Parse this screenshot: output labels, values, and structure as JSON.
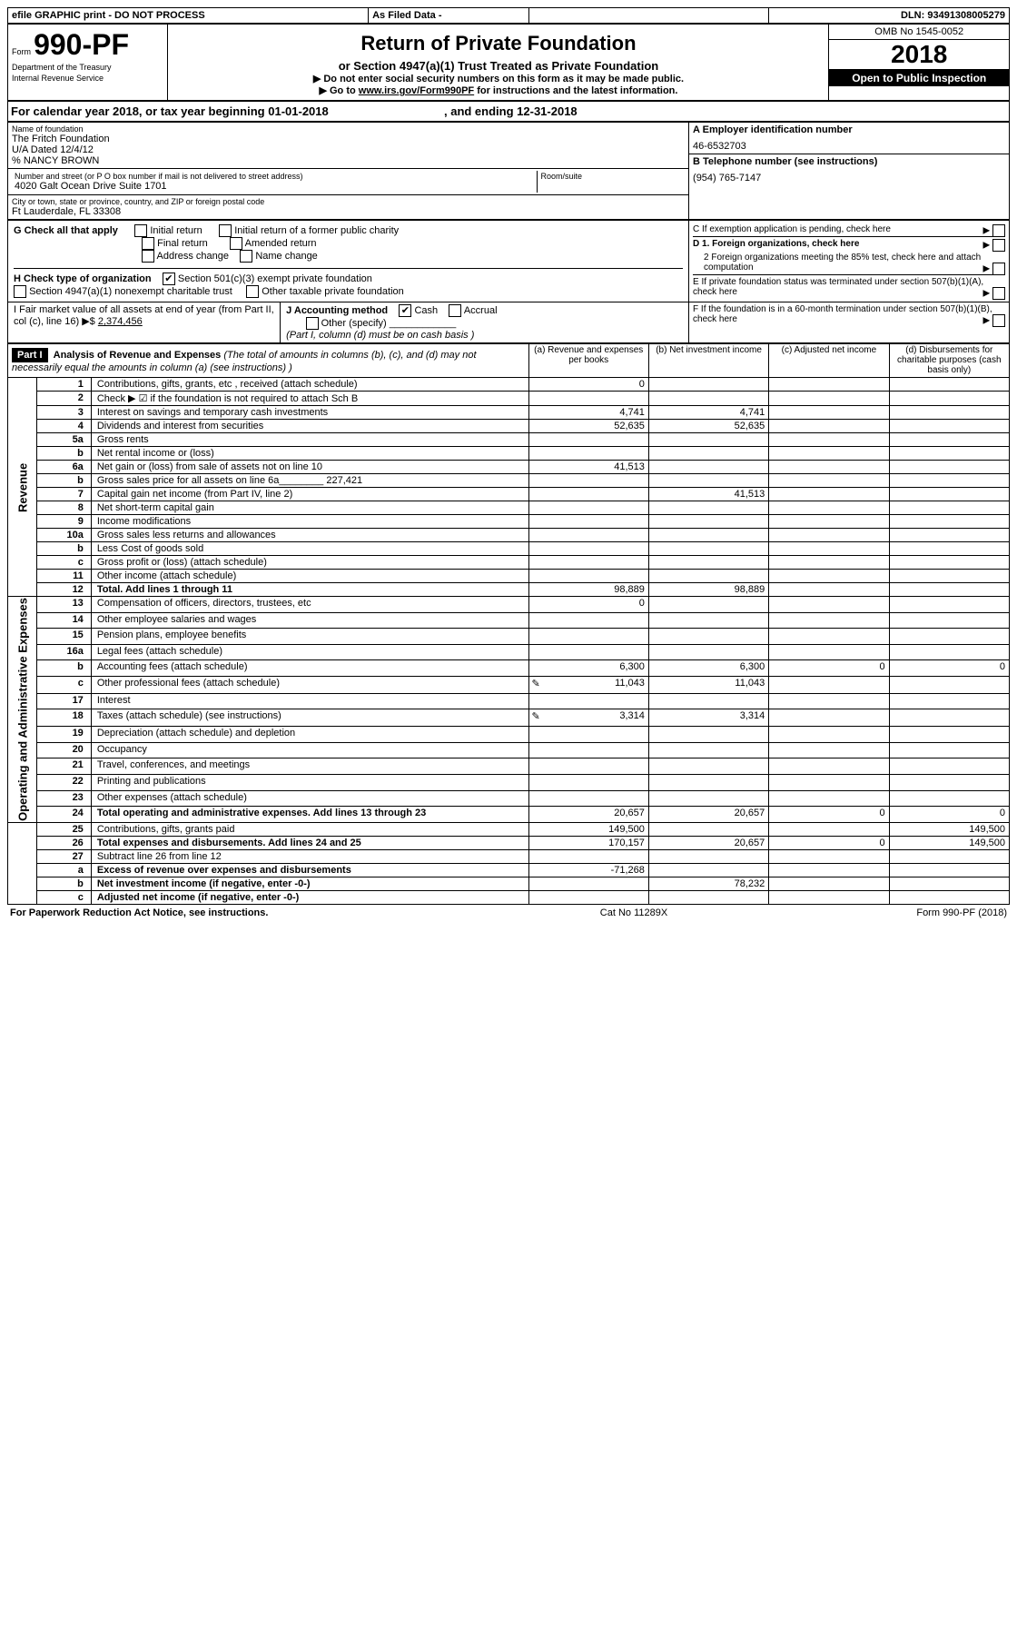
{
  "topbar": {
    "efile": "efile GRAPHIC print - DO NOT PROCESS",
    "asfiled": "As Filed Data -",
    "dln_label": "DLN:",
    "dln": "93491308005279"
  },
  "header": {
    "form_prefix": "Form",
    "form_number": "990-PF",
    "dept": "Department of the Treasury",
    "irs": "Internal Revenue Service",
    "title": "Return of Private Foundation",
    "subtitle": "or Section 4947(a)(1) Trust Treated as Private Foundation",
    "instr1": "▶ Do not enter social security numbers on this form as it may be made public.",
    "instr2_pre": "▶ Go to ",
    "instr2_link": "www.irs.gov/Form990PF",
    "instr2_post": " for instructions and the latest information.",
    "omb": "OMB No 1545-0052",
    "year": "2018",
    "open": "Open to Public Inspection"
  },
  "period": {
    "line_pre": "For calendar year 2018, or tax year beginning ",
    "begin": "01-01-2018",
    "mid": ", and ending ",
    "end": "12-31-2018"
  },
  "name_block": {
    "label": "Name of foundation",
    "l1": "The Fritch Foundation",
    "l2": "U/A Dated 12/4/12",
    "l3": "% NANCY BROWN",
    "street_label": "Number and street (or P O  box number if mail is not delivered to street address)",
    "street": "4020 Galt Ocean Drive Suite 1701",
    "room_label": "Room/suite",
    "city_label": "City or town, state or province, country, and ZIP or foreign postal code",
    "city": "Ft Lauderdale, FL  33308"
  },
  "right_block": {
    "a_label": "A Employer identification number",
    "a_val": "46-6532703",
    "b_label": "B Telephone number (see instructions)",
    "b_val": "(954) 765-7147",
    "c_label": "C If exemption application is pending, check here",
    "d1": "D 1. Foreign organizations, check here",
    "d2": "2 Foreign organizations meeting the 85% test, check here and attach computation",
    "e": "E  If private foundation status was terminated under section 507(b)(1)(A), check here",
    "f": "F  If the foundation is in a 60-month termination under section 507(b)(1)(B), check here"
  },
  "g": {
    "label": "G Check all that apply",
    "initial": "Initial return",
    "initial_former": "Initial return of a former public charity",
    "final": "Final return",
    "amended": "Amended return",
    "address": "Address change",
    "name": "Name change"
  },
  "h": {
    "label": "H Check type of organization",
    "c3": "Section 501(c)(3) exempt private foundation",
    "trust": "Section 4947(a)(1) nonexempt charitable trust",
    "other": "Other taxable private foundation"
  },
  "i": {
    "label": "I Fair market value of all assets at end of year (from Part II, col  (c), line 16) ▶$",
    "val": "2,374,456"
  },
  "j": {
    "label": "J Accounting method",
    "cash": "Cash",
    "accrual": "Accrual",
    "other": "Other (specify)",
    "note": "(Part I, column (d) must be on cash basis )"
  },
  "part1": {
    "hdr": "Part I",
    "title": "Analysis of Revenue and Expenses",
    "sub": "(The total of amounts in columns (b), (c), and (d) may not necessarily equal the amounts in column (a) (see instructions) )",
    "col_a": "(a) Revenue and expenses per books",
    "col_b": "(b) Net investment income",
    "col_c": "(c) Adjusted net income",
    "col_d": "(d) Disbursements for charitable purposes (cash basis only)",
    "rev_label": "Revenue",
    "exp_label": "Operating and Administrative Expenses"
  },
  "rows": [
    {
      "n": "1",
      "t": "Contributions, gifts, grants, etc , received (attach schedule)",
      "a": "0"
    },
    {
      "n": "2",
      "t": "Check ▶ ☑ if the foundation is not required to attach Sch  B"
    },
    {
      "n": "3",
      "t": "Interest on savings and temporary cash investments",
      "a": "4,741",
      "b": "4,741"
    },
    {
      "n": "4",
      "t": "Dividends and interest from securities",
      "a": "52,635",
      "b": "52,635"
    },
    {
      "n": "5a",
      "t": "Gross rents"
    },
    {
      "n": "b",
      "t": "Net rental income or (loss)"
    },
    {
      "n": "6a",
      "t": "Net gain or (loss) from sale of assets not on line 10",
      "a": "41,513"
    },
    {
      "n": "b",
      "t": "Gross sales price for all assets on line 6a________ 227,421"
    },
    {
      "n": "7",
      "t": "Capital gain net income (from Part IV, line 2)",
      "b": "41,513"
    },
    {
      "n": "8",
      "t": "Net short-term capital gain"
    },
    {
      "n": "9",
      "t": "Income modifications"
    },
    {
      "n": "10a",
      "t": "Gross sales less returns and allowances"
    },
    {
      "n": "b",
      "t": "Less  Cost of goods sold"
    },
    {
      "n": "c",
      "t": "Gross profit or (loss) (attach schedule)"
    },
    {
      "n": "11",
      "t": "Other income (attach schedule)"
    },
    {
      "n": "12",
      "t": "Total. Add lines 1 through 11",
      "a": "98,889",
      "b": "98,889",
      "bold": true
    },
    {
      "n": "13",
      "t": "Compensation of officers, directors, trustees, etc",
      "a": "0"
    },
    {
      "n": "14",
      "t": "Other employee salaries and wages"
    },
    {
      "n": "15",
      "t": "Pension plans, employee benefits"
    },
    {
      "n": "16a",
      "t": "Legal fees (attach schedule)"
    },
    {
      "n": "b",
      "t": "Accounting fees (attach schedule)",
      "a": "6,300",
      "b": "6,300",
      "c": "0",
      "d": "0"
    },
    {
      "n": "c",
      "t": "Other professional fees (attach schedule)",
      "a": "11,043",
      "b": "11,043",
      "icon": true
    },
    {
      "n": "17",
      "t": "Interest"
    },
    {
      "n": "18",
      "t": "Taxes (attach schedule) (see instructions)",
      "a": "3,314",
      "b": "3,314",
      "icon": true
    },
    {
      "n": "19",
      "t": "Depreciation (attach schedule) and depletion"
    },
    {
      "n": "20",
      "t": "Occupancy"
    },
    {
      "n": "21",
      "t": "Travel, conferences, and meetings"
    },
    {
      "n": "22",
      "t": "Printing and publications"
    },
    {
      "n": "23",
      "t": "Other expenses (attach schedule)"
    },
    {
      "n": "24",
      "t": "Total operating and administrative expenses. Add lines 13 through 23",
      "a": "20,657",
      "b": "20,657",
      "c": "0",
      "d": "0",
      "bold": true
    },
    {
      "n": "25",
      "t": "Contributions, gifts, grants paid",
      "a": "149,500",
      "d": "149,500"
    },
    {
      "n": "26",
      "t": "Total expenses and disbursements. Add lines 24 and 25",
      "a": "170,157",
      "b": "20,657",
      "c": "0",
      "d": "149,500",
      "bold": true
    },
    {
      "n": "27",
      "t": "Subtract line 26 from line 12"
    },
    {
      "n": "a",
      "t": "Excess of revenue over expenses and disbursements",
      "a": "-71,268",
      "bold": true
    },
    {
      "n": "b",
      "t": "Net investment income (if negative, enter -0-)",
      "b": "78,232",
      "bold": true
    },
    {
      "n": "c",
      "t": "Adjusted net income (if negative, enter -0-)",
      "bold": true
    }
  ],
  "footer": {
    "left": "For Paperwork Reduction Act Notice, see instructions.",
    "mid": "Cat  No  11289X",
    "right": "Form 990-PF (2018)"
  }
}
